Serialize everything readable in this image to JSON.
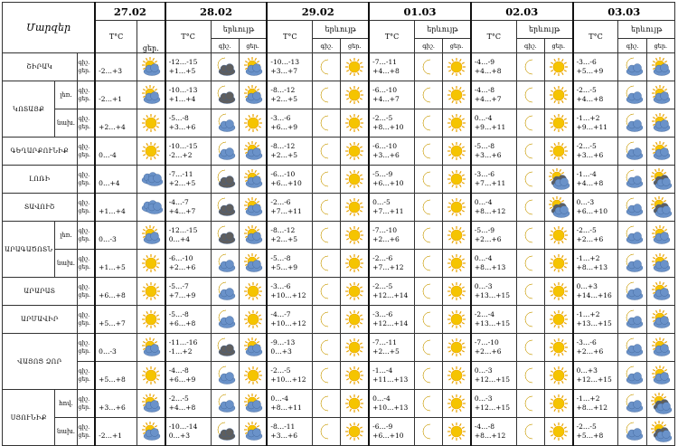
{
  "header": {
    "corner": "Մարզեր",
    "dates": [
      "27.02",
      "28.02",
      "29.02",
      "01.03",
      "02.03",
      "03.03"
    ],
    "temp_unit": "T°C",
    "night_lbl": "գիշ.",
    "day_lbl": "ցեր.",
    "weather": "երևույթ"
  },
  "colors": {
    "sun": "#f5c400",
    "sun_ray": "#e8a200",
    "moon": "#f3c200",
    "cloud": "#6a92c9",
    "cloud_dark": "#5e5e5e"
  },
  "rows": [
    {
      "region": "ՇԻՐԱԿ",
      "sub": "",
      "dn": [
        "գիշ.",
        "ցեր."
      ],
      "d1": {
        "t": "-2…+3",
        "i": "sun-cloud"
      },
      "days": [
        {
          "t1": "-12…-15",
          "t2": "+1…+5",
          "i1": "moon-cloud-dark",
          "i2": "sun-cloud"
        },
        {
          "t1": "-10…-13",
          "t2": "+3…+7",
          "i1": "moon",
          "i2": "sun"
        },
        {
          "t1": "-7…-11",
          "t2": "+4…+8",
          "i1": "moon",
          "i2": "sun"
        },
        {
          "t1": "-4…-9",
          "t2": "+4…+8",
          "i1": "moon",
          "i2": "sun"
        },
        {
          "t1": "-3…-6",
          "t2": "+5…+9",
          "i1": "moon-cloud",
          "i2": "sun-cloud"
        }
      ]
    },
    {
      "region": "ԿՈՏԱՅՔ",
      "sub": "լեռ.",
      "dn": [
        "գիշ.",
        "ցեր."
      ],
      "d1": {
        "t": "-2…+1",
        "i": "sun-cloud"
      },
      "days": [
        {
          "t1": "-10…-13",
          "t2": "+1…+4",
          "i1": "moon-cloud-dark",
          "i2": "sun-cloud"
        },
        {
          "t1": "-8…-12",
          "t2": "+2…+5",
          "i1": "moon",
          "i2": "sun"
        },
        {
          "t1": "-6…-10",
          "t2": "+4…+7",
          "i1": "moon",
          "i2": "sun"
        },
        {
          "t1": "-4…-8",
          "t2": "+4…+7",
          "i1": "moon",
          "i2": "sun"
        },
        {
          "t1": "-2…-5",
          "t2": "+4…+8",
          "i1": "moon-cloud",
          "i2": "sun-cloud"
        }
      ]
    },
    {
      "region": "",
      "sub": "նախ.",
      "dn": [
        "գիշ.",
        "ցեր."
      ],
      "d1": {
        "t": "+2…+4",
        "i": "sun"
      },
      "days": [
        {
          "t1": "-5…-8",
          "t2": "+3…+6",
          "i1": "moon-cloud",
          "i2": "sun"
        },
        {
          "t1": "-3…-6",
          "t2": "+6…+9",
          "i1": "moon",
          "i2": "sun"
        },
        {
          "t1": "-2…-5",
          "t2": "+8…+10",
          "i1": "moon",
          "i2": "sun"
        },
        {
          "t1": "0…-4",
          "t2": "+9…+11",
          "i1": "moon",
          "i2": "sun"
        },
        {
          "t1": "-1…+2",
          "t2": "+9…+11",
          "i1": "moon-cloud",
          "i2": "sun-cloud"
        }
      ]
    },
    {
      "region": "ԳԵՂԱՐՔՈՒՆԻՔ",
      "sub": "",
      "dn": [
        "գիշ.",
        "ցեր."
      ],
      "d1": {
        "t": "0…-4",
        "i": "sun"
      },
      "days": [
        {
          "t1": "-10…-15",
          "t2": "-2…+2",
          "i1": "moon-cloud",
          "i2": "sun-cloud"
        },
        {
          "t1": "-8…-12",
          "t2": "+2…+5",
          "i1": "moon",
          "i2": "sun"
        },
        {
          "t1": "-6…-10",
          "t2": "+3…+6",
          "i1": "moon",
          "i2": "sun"
        },
        {
          "t1": "-5…-8",
          "t2": "+3…+6",
          "i1": "moon",
          "i2": "sun"
        },
        {
          "t1": "-2…-5",
          "t2": "+3…+6",
          "i1": "moon-cloud",
          "i2": "sun-cloud"
        }
      ]
    },
    {
      "region": "ԼՈՌԻ",
      "sub": "",
      "dn": [
        "գիշ.",
        "ցեր."
      ],
      "d1": {
        "t": "0…+4",
        "i": "cloud"
      },
      "days": [
        {
          "t1": "-7…-11",
          "t2": "+2…+5",
          "i1": "moon-cloud-dark",
          "i2": "sun-cloud"
        },
        {
          "t1": "-6…-10",
          "t2": "+6…+10",
          "i1": "moon",
          "i2": "sun"
        },
        {
          "t1": "-5…-9",
          "t2": "+6…+10",
          "i1": "moon",
          "i2": "sun"
        },
        {
          "t1": "-3…-6",
          "t2": "+7…+11",
          "i1": "moon",
          "i2": "sun-cloud-dark"
        },
        {
          "t1": "-1…-4",
          "t2": "+4…+8",
          "i1": "moon-cloud",
          "i2": "sun-cloud-dark"
        }
      ]
    },
    {
      "region": "ՏԱՎՈՒՇ",
      "sub": "",
      "dn": [
        "գիշ.",
        "ցեր."
      ],
      "d1": {
        "t": "+1…+4",
        "i": "cloud"
      },
      "days": [
        {
          "t1": "-4…-7",
          "t2": "+4…+7",
          "i1": "moon-cloud-dark",
          "i2": "sun-cloud"
        },
        {
          "t1": "-2…-6",
          "t2": "+7…+11",
          "i1": "moon",
          "i2": "sun"
        },
        {
          "t1": "0…-5",
          "t2": "+7…+11",
          "i1": "moon",
          "i2": "sun"
        },
        {
          "t1": "0…-4",
          "t2": "+8…+12",
          "i1": "moon",
          "i2": "sun-cloud-dark"
        },
        {
          "t1": "0…-3",
          "t2": "+6…+10",
          "i1": "moon-cloud",
          "i2": "sun-cloud-dark"
        }
      ]
    },
    {
      "region": "ԱՐԱԳԱԾՈՏՆ",
      "sub": "լեռ.",
      "dn": [
        "գիշ.",
        "ցեր."
      ],
      "d1": {
        "t": "0…-3",
        "i": "sun-cloud"
      },
      "days": [
        {
          "t1": "-12…-15",
          "t2": "0…+4",
          "i1": "moon-cloud-dark",
          "i2": "sun-cloud"
        },
        {
          "t1": "-8…-12",
          "t2": "+2…+5",
          "i1": "moon",
          "i2": "sun"
        },
        {
          "t1": "-7…-10",
          "t2": "+2…+6",
          "i1": "moon",
          "i2": "sun"
        },
        {
          "t1": "-5…-9",
          "t2": "+2…+6",
          "i1": "moon",
          "i2": "sun"
        },
        {
          "t1": "-2…-5",
          "t2": "+2…+6",
          "i1": "moon-cloud",
          "i2": "sun-cloud"
        }
      ]
    },
    {
      "region": "",
      "sub": "նախ.",
      "dn": [
        "գիշ.",
        "ցեր."
      ],
      "d1": {
        "t": "+1…+5",
        "i": "sun"
      },
      "days": [
        {
          "t1": "-6…-10",
          "t2": "+2…+6",
          "i1": "moon-cloud",
          "i2": "sun-cloud"
        },
        {
          "t1": "-5…-8",
          "t2": "+5…+9",
          "i1": "moon",
          "i2": "sun"
        },
        {
          "t1": "-2…-6",
          "t2": "+7…+12",
          "i1": "moon",
          "i2": "sun"
        },
        {
          "t1": "0…-4",
          "t2": "+8…+13",
          "i1": "moon",
          "i2": "sun"
        },
        {
          "t1": "-1…+2",
          "t2": "+8…+13",
          "i1": "moon-cloud",
          "i2": "sun-cloud"
        }
      ]
    },
    {
      "region": "ԱՐԱՐԱՏ",
      "sub": "",
      "dn": [
        "գիշ.",
        "ցեր."
      ],
      "d1": {
        "t": "+6…+8",
        "i": "sun"
      },
      "days": [
        {
          "t1": "-5…-7",
          "t2": "+7…+9",
          "i1": "moon-cloud",
          "i2": "sun"
        },
        {
          "t1": "-3…-6",
          "t2": "+10…+12",
          "i1": "moon",
          "i2": "sun"
        },
        {
          "t1": "-2…-5",
          "t2": "+12…+14",
          "i1": "moon",
          "i2": "sun"
        },
        {
          "t1": "0…-3",
          "t2": "+13…+15",
          "i1": "moon",
          "i2": "sun"
        },
        {
          "t1": "0…+3",
          "t2": "+14…+16",
          "i1": "moon-cloud",
          "i2": "sun-cloud"
        }
      ]
    },
    {
      "region": "ԱՐՄԱՎԻՐ",
      "sub": "",
      "dn": [
        "գիշ.",
        "ցեր."
      ],
      "d1": {
        "t": "+5…+7",
        "i": "sun"
      },
      "days": [
        {
          "t1": "-5…-8",
          "t2": "+6…+8",
          "i1": "moon-cloud",
          "i2": "sun"
        },
        {
          "t1": "-4…-7",
          "t2": "+10…+12",
          "i1": "moon",
          "i2": "sun"
        },
        {
          "t1": "-3…-6",
          "t2": "+12…+14",
          "i1": "moon",
          "i2": "sun"
        },
        {
          "t1": "-2…-4",
          "t2": "+13…+15",
          "i1": "moon",
          "i2": "sun"
        },
        {
          "t1": "-1…+2",
          "t2": "+13…+15",
          "i1": "moon-cloud",
          "i2": "sun-cloud"
        }
      ]
    },
    {
      "region": "ՎԱՅՈՑ ՁՈՐ",
      "sub": "",
      "dn": [
        "գիշ.",
        "ցեր."
      ],
      "d1": {
        "t": "0…-3",
        "i": "sun-cloud"
      },
      "days": [
        {
          "t1": "-11…-16",
          "t2": "-1…+2",
          "i1": "moon-cloud-dark",
          "i2": "sun-cloud"
        },
        {
          "t1": "-9…-13",
          "t2": "0…+3",
          "i1": "moon",
          "i2": "sun"
        },
        {
          "t1": "-7…-11",
          "t2": "+2…+5",
          "i1": "moon",
          "i2": "sun"
        },
        {
          "t1": "-7…-10",
          "t2": "+2…+6",
          "i1": "moon",
          "i2": "sun"
        },
        {
          "t1": "-3…-6",
          "t2": "+2…+6",
          "i1": "moon-cloud",
          "i2": "sun-cloud"
        }
      ]
    },
    {
      "region": "",
      "sub": "",
      "dn": [
        "գիշ.",
        "ցեր."
      ],
      "d1": {
        "t": "+5…+8",
        "i": "sun"
      },
      "days": [
        {
          "t1": "-4…-8",
          "t2": "+6…+9",
          "i1": "moon-cloud",
          "i2": "sun"
        },
        {
          "t1": "-2…-5",
          "t2": "+10…+12",
          "i1": "moon",
          "i2": "sun"
        },
        {
          "t1": "-1…-4",
          "t2": "+11…+13",
          "i1": "moon",
          "i2": "sun"
        },
        {
          "t1": "0…-3",
          "t2": "+12…+15",
          "i1": "moon",
          "i2": "sun"
        },
        {
          "t1": "0…+3",
          "t2": "+12…+15",
          "i1": "moon-cloud",
          "i2": "sun-cloud"
        }
      ]
    },
    {
      "region": "ՍՅՈՒՆԻՔ",
      "sub": "հով.",
      "dn": [
        "գիշ.",
        "ցեր."
      ],
      "d1": {
        "t": "+3…+6",
        "i": "sun-cloud"
      },
      "days": [
        {
          "t1": "-2…-5",
          "t2": "+4…+8",
          "i1": "moon-cloud",
          "i2": "sun-cloud"
        },
        {
          "t1": "0…-4",
          "t2": "+8…+11",
          "i1": "moon",
          "i2": "sun"
        },
        {
          "t1": "0…-4",
          "t2": "+10…+13",
          "i1": "moon",
          "i2": "sun"
        },
        {
          "t1": "0…-3",
          "t2": "+12…+15",
          "i1": "moon",
          "i2": "sun"
        },
        {
          "t1": "-1…+2",
          "t2": "+8…+12",
          "i1": "moon-cloud",
          "i2": "sun-cloud-dark"
        }
      ]
    },
    {
      "region": "",
      "sub": "նախ.",
      "dn": [
        "գիշ.",
        "ցեր."
      ],
      "d1": {
        "t": "-2…+1",
        "i": "sun-cloud"
      },
      "days": [
        {
          "t1": "-10…-14",
          "t2": "0…+3",
          "i1": "moon-cloud-dark",
          "i2": "sun-cloud"
        },
        {
          "t1": "-8…-11",
          "t2": "+3…+6",
          "i1": "moon",
          "i2": "sun"
        },
        {
          "t1": "-6…-9",
          "t2": "+6…+10",
          "i1": "moon",
          "i2": "sun"
        },
        {
          "t1": "-4…-8",
          "t2": "+8…+12",
          "i1": "moon",
          "i2": "sun"
        },
        {
          "t1": "-2…-5",
          "t2": "+5…+8",
          "i1": "moon-cloud",
          "i2": "sun-cloud-dark"
        }
      ]
    }
  ]
}
